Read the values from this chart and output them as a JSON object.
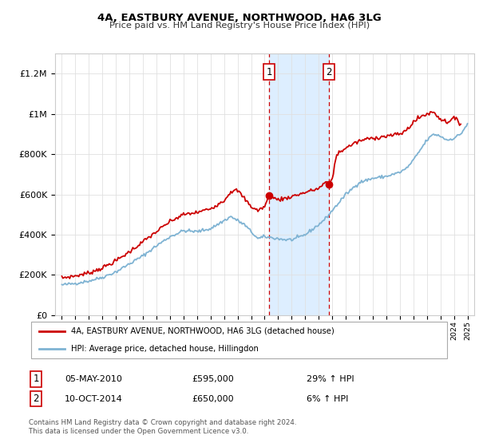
{
  "title": "4A, EASTBURY AVENUE, NORTHWOOD, HA6 3LG",
  "subtitle": "Price paid vs. HM Land Registry's House Price Index (HPI)",
  "legend_line1": "4A, EASTBURY AVENUE, NORTHWOOD, HA6 3LG (detached house)",
  "legend_line2": "HPI: Average price, detached house, Hillingdon",
  "sale1_date": "05-MAY-2010",
  "sale1_price": "£595,000",
  "sale1_hpi": "29% ↑ HPI",
  "sale2_date": "10-OCT-2014",
  "sale2_price": "£650,000",
  "sale2_hpi": "6% ↑ HPI",
  "footer": "Contains HM Land Registry data © Crown copyright and database right 2024.\nThis data is licensed under the Open Government Licence v3.0.",
  "red_color": "#cc0000",
  "blue_color": "#7fb3d3",
  "shade_color": "#ddeeff",
  "vline_color": "#cc0000",
  "sale1_year": 2010.35,
  "sale2_year": 2014.77,
  "ylim": [
    0,
    1300000
  ],
  "xlim_left": 1994.5,
  "xlim_right": 2025.5
}
